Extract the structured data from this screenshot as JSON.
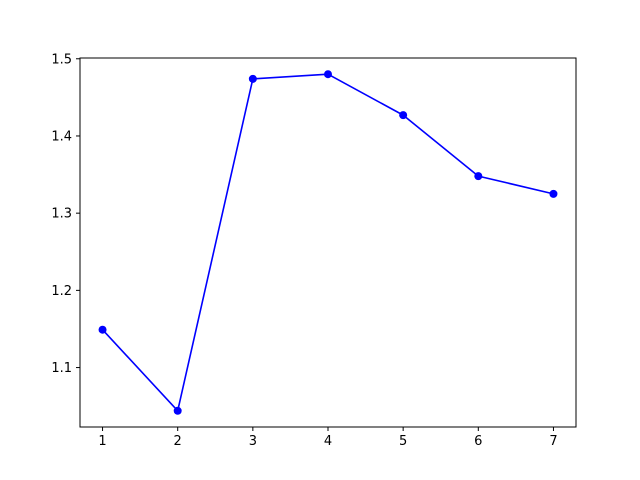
{
  "chart_data": {
    "type": "line",
    "title": "",
    "xlabel": "",
    "ylabel": "",
    "x": [
      1,
      2,
      3,
      4,
      5,
      6,
      7
    ],
    "series": [
      {
        "values": [
          1.149,
          1.044,
          1.474,
          1.48,
          1.427,
          1.348,
          1.325
        ],
        "color": "#0000ff",
        "marker": "circle"
      }
    ],
    "xlim": [
      0.7,
      7.3
    ],
    "ylim": [
      1.023,
      1.501
    ],
    "x_ticks": [
      1,
      2,
      3,
      4,
      5,
      6,
      7
    ],
    "y_ticks": [
      1.1,
      1.2,
      1.3,
      1.4,
      1.5
    ],
    "x_tick_labels": [
      "1",
      "2",
      "3",
      "4",
      "5",
      "6",
      "7"
    ],
    "y_tick_labels": [
      "1.1",
      "1.2",
      "1.3",
      "1.4",
      "1.5"
    ],
    "grid": false,
    "legend": "none"
  }
}
